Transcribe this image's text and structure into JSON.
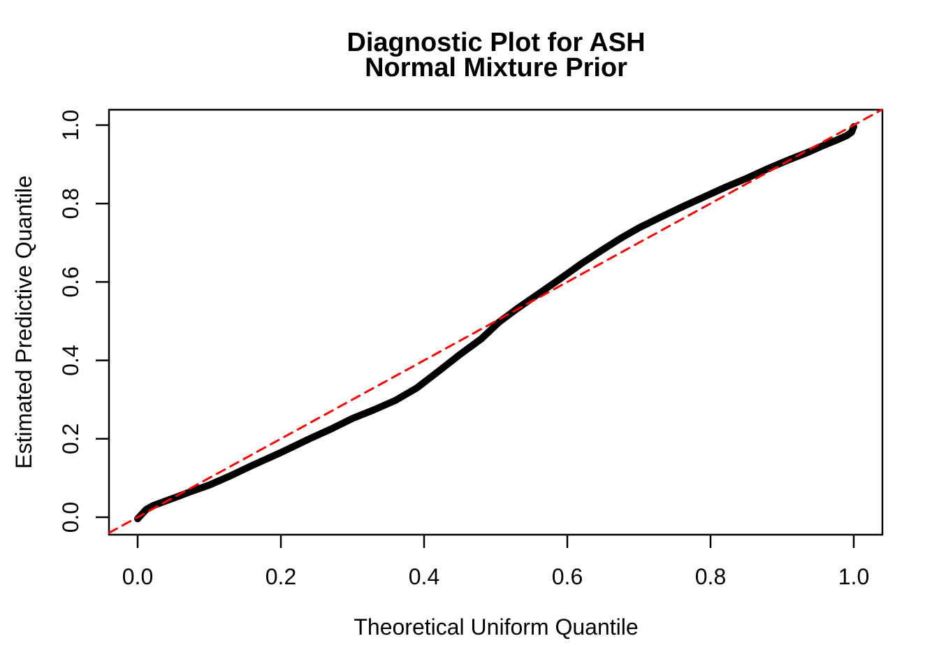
{
  "chart_data": {
    "type": "line",
    "title_line1": "Diagnostic Plot for ASH",
    "title_line2": "Normal Mixture Prior",
    "xlabel": "Theoretical Uniform Quantile",
    "ylabel": "Estimated Predictive Quantile",
    "xlim": [
      -0.04,
      1.04
    ],
    "ylim": [
      -0.045,
      1.039
    ],
    "grid": false,
    "legend": "none",
    "background_color": "#ffffff",
    "box_color": "#000000",
    "x_ticks": {
      "values": [
        0.0,
        0.2,
        0.4,
        0.6,
        0.8,
        1.0
      ],
      "labels": [
        "0.0",
        "0.2",
        "0.4",
        "0.6",
        "0.8",
        "1.0"
      ]
    },
    "y_ticks": {
      "values": [
        0.0,
        0.2,
        0.4,
        0.6,
        0.8,
        1.0
      ],
      "labels": [
        "0.0",
        "0.2",
        "0.4",
        "0.6",
        "0.8",
        "1.0"
      ]
    },
    "series": [
      {
        "name": "estimated-predictive-quantile-curve",
        "color": "#000000",
        "line_style": "solid",
        "points": [
          [
            0.0,
            -0.004
          ],
          [
            0.005,
            0.006
          ],
          [
            0.012,
            0.02
          ],
          [
            0.022,
            0.03
          ],
          [
            0.04,
            0.042
          ],
          [
            0.055,
            0.052
          ],
          [
            0.075,
            0.066
          ],
          [
            0.1,
            0.082
          ],
          [
            0.13,
            0.106
          ],
          [
            0.16,
            0.132
          ],
          [
            0.2,
            0.165
          ],
          [
            0.24,
            0.2
          ],
          [
            0.27,
            0.225
          ],
          [
            0.3,
            0.252
          ],
          [
            0.33,
            0.274
          ],
          [
            0.36,
            0.298
          ],
          [
            0.39,
            0.33
          ],
          [
            0.42,
            0.372
          ],
          [
            0.45,
            0.415
          ],
          [
            0.48,
            0.455
          ],
          [
            0.505,
            0.498
          ],
          [
            0.53,
            0.532
          ],
          [
            0.56,
            0.57
          ],
          [
            0.59,
            0.608
          ],
          [
            0.62,
            0.647
          ],
          [
            0.65,
            0.683
          ],
          [
            0.675,
            0.712
          ],
          [
            0.7,
            0.738
          ],
          [
            0.73,
            0.765
          ],
          [
            0.76,
            0.791
          ],
          [
            0.79,
            0.816
          ],
          [
            0.82,
            0.841
          ],
          [
            0.85,
            0.864
          ],
          [
            0.88,
            0.889
          ],
          [
            0.91,
            0.912
          ],
          [
            0.935,
            0.93
          ],
          [
            0.955,
            0.946
          ],
          [
            0.975,
            0.961
          ],
          [
            0.99,
            0.973
          ],
          [
            0.997,
            0.982
          ],
          [
            1.0,
            0.996
          ]
        ]
      },
      {
        "name": "reference-line-y-equals-x",
        "color": "#FF0000",
        "line_style": "dashed",
        "points": [
          [
            -0.04,
            -0.04
          ],
          [
            1.039,
            1.039
          ]
        ]
      }
    ]
  }
}
